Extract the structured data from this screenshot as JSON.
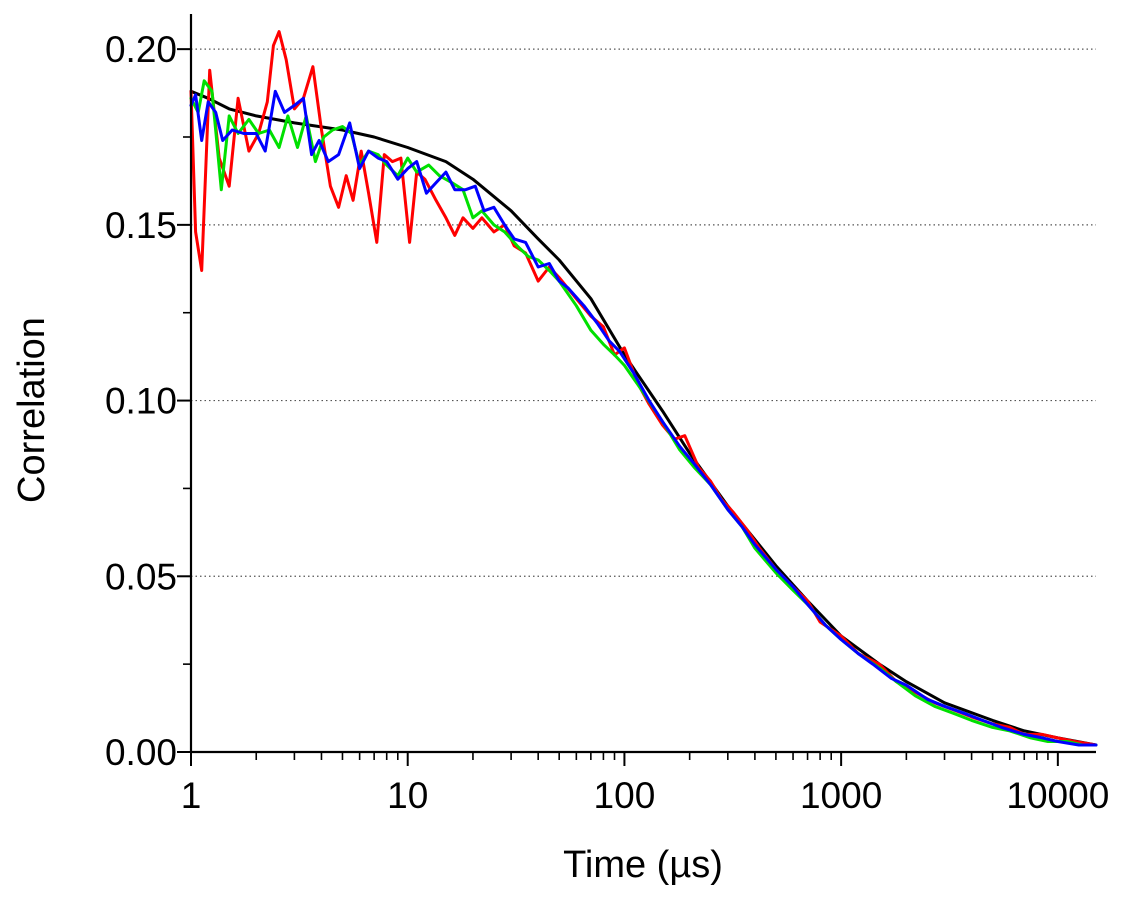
{
  "chart_data": {
    "type": "line",
    "title": "",
    "xlabel": "Time (µs)",
    "ylabel": "Correlation",
    "x_scale": "log",
    "xlim": [
      1,
      15000
    ],
    "ylim": [
      0,
      0.21
    ],
    "x_ticks": [
      1,
      10,
      100,
      1000,
      10000
    ],
    "x_tick_labels": [
      "1",
      "10",
      "100",
      "1000",
      "10000"
    ],
    "y_ticks": [
      0,
      0.05,
      0.1,
      0.15,
      0.2
    ],
    "y_tick_labels": [
      "0.00",
      "0.05",
      "0.10",
      "0.15",
      "0.20"
    ],
    "grid": {
      "horizontal": true,
      "vertical": false,
      "style": "dotted"
    },
    "legend": "none",
    "series": [
      {
        "color": "#000000",
        "points": [
          [
            1,
            0.188
          ],
          [
            1.2,
            0.186
          ],
          [
            1.5,
            0.183
          ],
          [
            2,
            0.181
          ],
          [
            3,
            0.179
          ],
          [
            5,
            0.177
          ],
          [
            7,
            0.175
          ],
          [
            10,
            0.172
          ],
          [
            15,
            0.168
          ],
          [
            20,
            0.163
          ],
          [
            30,
            0.154
          ],
          [
            40,
            0.146
          ],
          [
            50,
            0.14
          ],
          [
            70,
            0.129
          ],
          [
            100,
            0.113
          ],
          [
            150,
            0.097
          ],
          [
            200,
            0.085
          ],
          [
            300,
            0.07
          ],
          [
            500,
            0.053
          ],
          [
            700,
            0.043
          ],
          [
            1000,
            0.033
          ],
          [
            1500,
            0.025
          ],
          [
            2000,
            0.02
          ],
          [
            3000,
            0.014
          ],
          [
            5000,
            0.009
          ],
          [
            7000,
            0.006
          ],
          [
            10000,
            0.004
          ],
          [
            15000,
            0.002
          ]
        ]
      },
      {
        "color": "#ff0000",
        "points": [
          [
            1,
            0.188
          ],
          [
            1.05,
            0.148
          ],
          [
            1.12,
            0.137
          ],
          [
            1.22,
            0.194
          ],
          [
            1.35,
            0.169
          ],
          [
            1.5,
            0.161
          ],
          [
            1.65,
            0.186
          ],
          [
            1.85,
            0.171
          ],
          [
            2.05,
            0.176
          ],
          [
            2.25,
            0.185
          ],
          [
            2.4,
            0.201
          ],
          [
            2.55,
            0.205
          ],
          [
            2.75,
            0.197
          ],
          [
            3,
            0.183
          ],
          [
            3.3,
            0.186
          ],
          [
            3.65,
            0.195
          ],
          [
            4,
            0.177
          ],
          [
            4.4,
            0.161
          ],
          [
            4.8,
            0.155
          ],
          [
            5.2,
            0.164
          ],
          [
            5.6,
            0.157
          ],
          [
            6.1,
            0.171
          ],
          [
            6.6,
            0.159
          ],
          [
            7.2,
            0.145
          ],
          [
            7.8,
            0.17
          ],
          [
            8.5,
            0.168
          ],
          [
            9.3,
            0.169
          ],
          [
            10.2,
            0.145
          ],
          [
            11,
            0.165
          ],
          [
            12,
            0.163
          ],
          [
            13.5,
            0.157
          ],
          [
            15,
            0.152
          ],
          [
            16.5,
            0.147
          ],
          [
            18,
            0.152
          ],
          [
            20,
            0.149
          ],
          [
            22,
            0.152
          ],
          [
            25,
            0.148
          ],
          [
            28,
            0.15
          ],
          [
            31,
            0.144
          ],
          [
            35,
            0.142
          ],
          [
            40,
            0.134
          ],
          [
            45,
            0.138
          ],
          [
            50,
            0.135
          ],
          [
            60,
            0.129
          ],
          [
            70,
            0.124
          ],
          [
            80,
            0.121
          ],
          [
            90,
            0.113
          ],
          [
            100,
            0.115
          ],
          [
            115,
            0.105
          ],
          [
            130,
            0.099
          ],
          [
            150,
            0.093
          ],
          [
            170,
            0.089
          ],
          [
            190,
            0.09
          ],
          [
            220,
            0.081
          ],
          [
            250,
            0.077
          ],
          [
            280,
            0.072
          ],
          [
            320,
            0.068
          ],
          [
            370,
            0.063
          ],
          [
            420,
            0.058
          ],
          [
            500,
            0.052
          ],
          [
            600,
            0.047
          ],
          [
            700,
            0.043
          ],
          [
            800,
            0.037
          ],
          [
            1000,
            0.033
          ],
          [
            1200,
            0.028
          ],
          [
            1500,
            0.025
          ],
          [
            1800,
            0.02
          ],
          [
            2200,
            0.017
          ],
          [
            2700,
            0.014
          ],
          [
            3300,
            0.012
          ],
          [
            4000,
            0.01
          ],
          [
            5000,
            0.008
          ],
          [
            6000,
            0.007
          ],
          [
            7000,
            0.005
          ],
          [
            8500,
            0.005
          ],
          [
            10000,
            0.004
          ],
          [
            12000,
            0.003
          ],
          [
            15000,
            0.002
          ]
        ]
      },
      {
        "color": "#00e000",
        "points": [
          [
            1,
            0.186
          ],
          [
            1.08,
            0.182
          ],
          [
            1.15,
            0.191
          ],
          [
            1.25,
            0.188
          ],
          [
            1.38,
            0.16
          ],
          [
            1.5,
            0.181
          ],
          [
            1.65,
            0.176
          ],
          [
            1.85,
            0.18
          ],
          [
            2.05,
            0.176
          ],
          [
            2.3,
            0.177
          ],
          [
            2.55,
            0.172
          ],
          [
            2.8,
            0.181
          ],
          [
            3.1,
            0.172
          ],
          [
            3.4,
            0.181
          ],
          [
            3.75,
            0.168
          ],
          [
            4.1,
            0.175
          ],
          [
            4.5,
            0.177
          ],
          [
            5,
            0.178
          ],
          [
            5.5,
            0.176
          ],
          [
            6,
            0.167
          ],
          [
            6.6,
            0.171
          ],
          [
            7.3,
            0.17
          ],
          [
            8,
            0.167
          ],
          [
            9,
            0.164
          ],
          [
            10,
            0.169
          ],
          [
            11,
            0.165
          ],
          [
            12.5,
            0.167
          ],
          [
            14,
            0.164
          ],
          [
            16,
            0.162
          ],
          [
            18,
            0.16
          ],
          [
            20,
            0.152
          ],
          [
            22,
            0.154
          ],
          [
            25,
            0.15
          ],
          [
            28,
            0.148
          ],
          [
            32,
            0.144
          ],
          [
            36,
            0.141
          ],
          [
            40,
            0.14
          ],
          [
            45,
            0.137
          ],
          [
            50,
            0.134
          ],
          [
            60,
            0.127
          ],
          [
            70,
            0.12
          ],
          [
            80,
            0.116
          ],
          [
            90,
            0.113
          ],
          [
            100,
            0.11
          ],
          [
            120,
            0.103
          ],
          [
            150,
            0.094
          ],
          [
            180,
            0.086
          ],
          [
            210,
            0.081
          ],
          [
            250,
            0.076
          ],
          [
            300,
            0.069
          ],
          [
            350,
            0.064
          ],
          [
            400,
            0.058
          ],
          [
            500,
            0.051
          ],
          [
            600,
            0.046
          ],
          [
            700,
            0.042
          ],
          [
            850,
            0.036
          ],
          [
            1000,
            0.032
          ],
          [
            1200,
            0.028
          ],
          [
            1500,
            0.024
          ],
          [
            1800,
            0.02
          ],
          [
            2200,
            0.016
          ],
          [
            2700,
            0.013
          ],
          [
            3300,
            0.011
          ],
          [
            4000,
            0.009
          ],
          [
            5000,
            0.007
          ],
          [
            6000,
            0.006
          ],
          [
            7500,
            0.004
          ],
          [
            9000,
            0.003
          ],
          [
            11000,
            0.003
          ],
          [
            13000,
            0.002
          ],
          [
            15000,
            0.002
          ]
        ]
      },
      {
        "color": "#0000ff",
        "points": [
          [
            1,
            0.184
          ],
          [
            1.05,
            0.187
          ],
          [
            1.12,
            0.174
          ],
          [
            1.2,
            0.185
          ],
          [
            1.3,
            0.182
          ],
          [
            1.4,
            0.174
          ],
          [
            1.55,
            0.177
          ],
          [
            1.75,
            0.176
          ],
          [
            2,
            0.176
          ],
          [
            2.2,
            0.171
          ],
          [
            2.45,
            0.188
          ],
          [
            2.7,
            0.182
          ],
          [
            3,
            0.184
          ],
          [
            3.3,
            0.186
          ],
          [
            3.6,
            0.17
          ],
          [
            3.9,
            0.174
          ],
          [
            4.3,
            0.168
          ],
          [
            4.8,
            0.17
          ],
          [
            5.4,
            0.179
          ],
          [
            6,
            0.166
          ],
          [
            6.6,
            0.171
          ],
          [
            7.3,
            0.169
          ],
          [
            8,
            0.168
          ],
          [
            9,
            0.163
          ],
          [
            10,
            0.166
          ],
          [
            11,
            0.168
          ],
          [
            12.2,
            0.159
          ],
          [
            13.5,
            0.162
          ],
          [
            15,
            0.165
          ],
          [
            16.5,
            0.16
          ],
          [
            18.5,
            0.16
          ],
          [
            20.5,
            0.161
          ],
          [
            22.5,
            0.154
          ],
          [
            25,
            0.155
          ],
          [
            28,
            0.15
          ],
          [
            31,
            0.146
          ],
          [
            35,
            0.145
          ],
          [
            40,
            0.138
          ],
          [
            45,
            0.139
          ],
          [
            50,
            0.134
          ],
          [
            55,
            0.132
          ],
          [
            65,
            0.127
          ],
          [
            75,
            0.122
          ],
          [
            85,
            0.117
          ],
          [
            95,
            0.114
          ],
          [
            110,
            0.108
          ],
          [
            130,
            0.1
          ],
          [
            150,
            0.094
          ],
          [
            180,
            0.087
          ],
          [
            210,
            0.082
          ],
          [
            250,
            0.076
          ],
          [
            300,
            0.069
          ],
          [
            350,
            0.064
          ],
          [
            400,
            0.059
          ],
          [
            500,
            0.052
          ],
          [
            600,
            0.047
          ],
          [
            700,
            0.042
          ],
          [
            850,
            0.036
          ],
          [
            1000,
            0.032
          ],
          [
            1200,
            0.028
          ],
          [
            1400,
            0.025
          ],
          [
            1700,
            0.021
          ],
          [
            2000,
            0.019
          ],
          [
            2500,
            0.015
          ],
          [
            3000,
            0.013
          ],
          [
            3700,
            0.011
          ],
          [
            4500,
            0.009
          ],
          [
            5500,
            0.007
          ],
          [
            7000,
            0.005
          ],
          [
            8500,
            0.004
          ],
          [
            10000,
            0.003
          ],
          [
            12500,
            0.002
          ],
          [
            15000,
            0.002
          ]
        ]
      }
    ]
  }
}
